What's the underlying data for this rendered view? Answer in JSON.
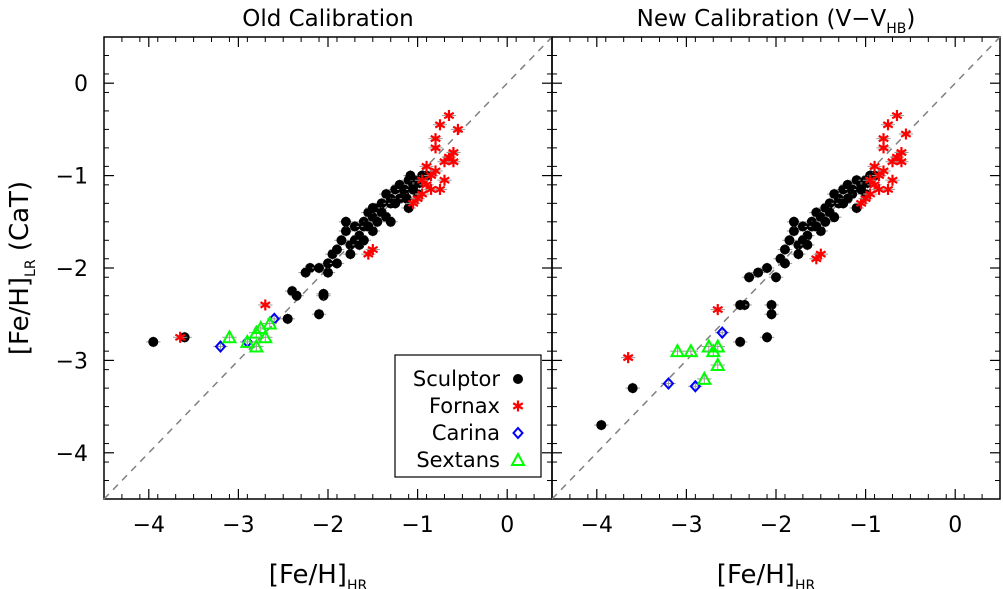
{
  "chart_data": [
    {
      "type": "scatter",
      "title": "Old Calibration",
      "title_parts": [],
      "xlabel": "[Fe/H]",
      "xlabel_sub": "HR",
      "ylabel": "[Fe/H]",
      "ylabel_sub": "LR",
      "ylabel_suffix": " (CaT)",
      "xlim": [
        -4.5,
        0.5
      ],
      "ylim": [
        -4.5,
        0.5
      ],
      "xticks": [
        -4,
        -3,
        -2,
        -1,
        0
      ],
      "xtick_labels": [
        "−4",
        "−3",
        "−2",
        "−1",
        "0"
      ],
      "yticks": [
        0,
        -1,
        -2,
        -3,
        -4
      ],
      "ytick_labels": [
        "0",
        "−1",
        "−2",
        "−3",
        "−4"
      ],
      "one_to_one_line": true,
      "grid": false,
      "legend": {
        "placement": "bottom-right"
      },
      "series": [
        {
          "name": "Sculptor",
          "marker": "circle",
          "color": "#000000",
          "points": [
            [
              -3.95,
              -2.8
            ],
            [
              -3.6,
              -2.75
            ],
            [
              -2.45,
              -2.55
            ],
            [
              -2.4,
              -2.25
            ],
            [
              -2.35,
              -2.3
            ],
            [
              -2.1,
              -2.5
            ],
            [
              -2.05,
              -2.3
            ],
            [
              -2.05,
              -2.28
            ],
            [
              -2.2,
              -2.0
            ],
            [
              -2.1,
              -2.0
            ],
            [
              -2.0,
              -2.05
            ],
            [
              -2.25,
              -2.05
            ],
            [
              -2.0,
              -1.95
            ],
            [
              -1.95,
              -1.85
            ],
            [
              -1.9,
              -1.8
            ],
            [
              -1.85,
              -1.7
            ],
            [
              -1.8,
              -1.6
            ],
            [
              -1.75,
              -1.75
            ],
            [
              -1.7,
              -1.55
            ],
            [
              -1.65,
              -1.65
            ],
            [
              -1.6,
              -1.5
            ],
            [
              -1.55,
              -1.4
            ],
            [
              -1.5,
              -1.45
            ],
            [
              -1.45,
              -1.35
            ],
            [
              -1.4,
              -1.3
            ],
            [
              -1.35,
              -1.2
            ],
            [
              -1.3,
              -1.25
            ],
            [
              -1.25,
              -1.15
            ],
            [
              -1.2,
              -1.1
            ],
            [
              -1.15,
              -1.2
            ],
            [
              -1.1,
              -1.05
            ],
            [
              -1.05,
              -1.1
            ],
            [
              -1.0,
              -1.05
            ],
            [
              -0.95,
              -1.0
            ],
            [
              -1.6,
              -1.55
            ],
            [
              -1.7,
              -1.7
            ],
            [
              -1.5,
              -1.6
            ],
            [
              -1.4,
              -1.4
            ],
            [
              -1.3,
              -1.3
            ],
            [
              -1.2,
              -1.25
            ],
            [
              -1.15,
              -1.15
            ],
            [
              -1.1,
              -1.35
            ],
            [
              -1.0,
              -1.2
            ],
            [
              -0.9,
              -1.0
            ],
            [
              -1.8,
              -1.5
            ],
            [
              -1.9,
              -1.95
            ],
            [
              -1.65,
              -1.75
            ],
            [
              -1.55,
              -1.55
            ],
            [
              -1.45,
              -1.5
            ],
            [
              -1.35,
              -1.45
            ],
            [
              -1.25,
              -1.3
            ],
            [
              -1.05,
              -1.15
            ],
            [
              -0.98,
              -1.08
            ],
            [
              -0.92,
              -1.02
            ],
            [
              -1.75,
              -1.85
            ],
            [
              -1.6,
              -1.7
            ],
            [
              -1.5,
              -1.35
            ],
            [
              -1.3,
              -1.5
            ],
            [
              -1.12,
              -1.25
            ],
            [
              -1.08,
              -1.0
            ]
          ]
        },
        {
          "name": "Fornax",
          "marker": "asterisk",
          "color": "#ff0000",
          "points": [
            [
              -3.65,
              -2.75
            ],
            [
              -2.7,
              -2.4
            ],
            [
              -1.55,
              -1.85
            ],
            [
              -1.5,
              -1.8
            ],
            [
              -1.05,
              -1.3
            ],
            [
              -1.0,
              -1.25
            ],
            [
              -0.95,
              -1.2
            ],
            [
              -0.9,
              -1.1
            ],
            [
              -0.85,
              -1.0
            ],
            [
              -0.8,
              -0.95
            ],
            [
              -0.75,
              -1.15
            ],
            [
              -0.7,
              -0.85
            ],
            [
              -0.65,
              -0.8
            ],
            [
              -0.6,
              -0.75
            ],
            [
              -0.8,
              -0.6
            ],
            [
              -0.75,
              -0.45
            ],
            [
              -0.65,
              -0.35
            ],
            [
              -0.55,
              -0.5
            ],
            [
              -0.95,
              -1.05
            ],
            [
              -0.9,
              -0.9
            ],
            [
              -0.85,
              -1.15
            ],
            [
              -0.7,
              -1.05
            ],
            [
              -0.8,
              -0.7
            ],
            [
              -0.6,
              -0.85
            ]
          ]
        },
        {
          "name": "Carina",
          "marker": "diamond",
          "color": "#0000ff",
          "points": [
            [
              -3.2,
              -2.85
            ],
            [
              -2.9,
              -2.8
            ],
            [
              -2.6,
              -2.55
            ]
          ]
        },
        {
          "name": "Sextans",
          "marker": "triangle",
          "color": "#00ff00",
          "points": [
            [
              -3.1,
              -2.75
            ],
            [
              -2.9,
              -2.8
            ],
            [
              -2.8,
              -2.7
            ],
            [
              -2.75,
              -2.65
            ],
            [
              -2.7,
              -2.75
            ],
            [
              -2.65,
              -2.6
            ],
            [
              -2.8,
              -2.85
            ]
          ]
        }
      ]
    },
    {
      "type": "scatter",
      "title": "",
      "title_parts": [
        "New Calibration (V−V",
        "HB",
        ")"
      ],
      "xlabel": "[Fe/H]",
      "xlabel_sub": "HR",
      "xlim": [
        -4.5,
        0.5
      ],
      "ylim": [
        -4.5,
        0.5
      ],
      "xticks": [
        -4,
        -3,
        -2,
        -1,
        0
      ],
      "xtick_labels": [
        "−4",
        "−3",
        "−2",
        "−1",
        "0"
      ],
      "one_to_one_line": true,
      "grid": false,
      "series": [
        {
          "name": "Sculptor",
          "marker": "circle",
          "color": "#000000",
          "points": [
            [
              -3.95,
              -3.7
            ],
            [
              -3.6,
              -3.3
            ],
            [
              -2.4,
              -2.8
            ],
            [
              -2.35,
              -2.4
            ],
            [
              -2.05,
              -2.4
            ],
            [
              -2.05,
              -2.5
            ],
            [
              -2.1,
              -2.75
            ],
            [
              -2.2,
              -2.05
            ],
            [
              -2.1,
              -2.0
            ],
            [
              -2.0,
              -2.1
            ],
            [
              -1.95,
              -1.9
            ],
            [
              -1.9,
              -1.8
            ],
            [
              -1.85,
              -1.7
            ],
            [
              -1.8,
              -1.6
            ],
            [
              -1.75,
              -1.75
            ],
            [
              -1.7,
              -1.55
            ],
            [
              -1.65,
              -1.65
            ],
            [
              -1.6,
              -1.5
            ],
            [
              -1.55,
              -1.4
            ],
            [
              -1.5,
              -1.45
            ],
            [
              -1.45,
              -1.35
            ],
            [
              -1.4,
              -1.3
            ],
            [
              -1.35,
              -1.2
            ],
            [
              -1.3,
              -1.25
            ],
            [
              -1.25,
              -1.15
            ],
            [
              -1.2,
              -1.1
            ],
            [
              -1.15,
              -1.2
            ],
            [
              -1.1,
              -1.05
            ],
            [
              -1.05,
              -1.1
            ],
            [
              -1.0,
              -1.05
            ],
            [
              -0.95,
              -1.0
            ],
            [
              -1.6,
              -1.55
            ],
            [
              -1.7,
              -1.7
            ],
            [
              -1.5,
              -1.6
            ],
            [
              -1.4,
              -1.4
            ],
            [
              -1.3,
              -1.3
            ],
            [
              -1.2,
              -1.25
            ],
            [
              -1.15,
              -1.15
            ],
            [
              -1.1,
              -1.35
            ],
            [
              -1.0,
              -1.2
            ],
            [
              -0.9,
              -1.0
            ],
            [
              -1.8,
              -1.5
            ],
            [
              -1.9,
              -1.95
            ],
            [
              -1.65,
              -1.75
            ],
            [
              -1.55,
              -1.55
            ],
            [
              -1.45,
              -1.5
            ],
            [
              -1.35,
              -1.45
            ],
            [
              -1.25,
              -1.3
            ],
            [
              -1.05,
              -1.15
            ],
            [
              -0.98,
              -1.08
            ],
            [
              -0.92,
              -1.02
            ],
            [
              -1.75,
              -1.85
            ],
            [
              -2.3,
              -2.1
            ],
            [
              -2.4,
              -2.4
            ]
          ]
        },
        {
          "name": "Fornax",
          "marker": "asterisk",
          "color": "#ff0000",
          "points": [
            [
              -3.65,
              -2.97
            ],
            [
              -2.65,
              -2.45
            ],
            [
              -1.55,
              -1.9
            ],
            [
              -1.5,
              -1.85
            ],
            [
              -1.05,
              -1.3
            ],
            [
              -1.0,
              -1.25
            ],
            [
              -0.95,
              -1.2
            ],
            [
              -0.9,
              -1.1
            ],
            [
              -0.85,
              -1.0
            ],
            [
              -0.8,
              -0.95
            ],
            [
              -0.75,
              -1.15
            ],
            [
              -0.7,
              -0.85
            ],
            [
              -0.65,
              -0.8
            ],
            [
              -0.6,
              -0.75
            ],
            [
              -0.8,
              -0.6
            ],
            [
              -0.75,
              -0.45
            ],
            [
              -0.65,
              -0.35
            ],
            [
              -0.55,
              -0.55
            ],
            [
              -0.95,
              -1.05
            ],
            [
              -0.9,
              -0.9
            ],
            [
              -0.85,
              -1.15
            ],
            [
              -0.7,
              -1.05
            ],
            [
              -0.8,
              -0.7
            ],
            [
              -0.6,
              -0.85
            ]
          ]
        },
        {
          "name": "Carina",
          "marker": "diamond",
          "color": "#0000ff",
          "points": [
            [
              -3.2,
              -3.25
            ],
            [
              -2.9,
              -3.28
            ],
            [
              -2.6,
              -2.7
            ]
          ]
        },
        {
          "name": "Sextans",
          "marker": "triangle",
          "color": "#00ff00",
          "points": [
            [
              -3.1,
              -2.9
            ],
            [
              -2.95,
              -2.9
            ],
            [
              -2.8,
              -3.2
            ],
            [
              -2.75,
              -2.85
            ],
            [
              -2.7,
              -2.9
            ],
            [
              -2.65,
              -2.85
            ],
            [
              -2.65,
              -3.05
            ]
          ]
        }
      ]
    }
  ]
}
